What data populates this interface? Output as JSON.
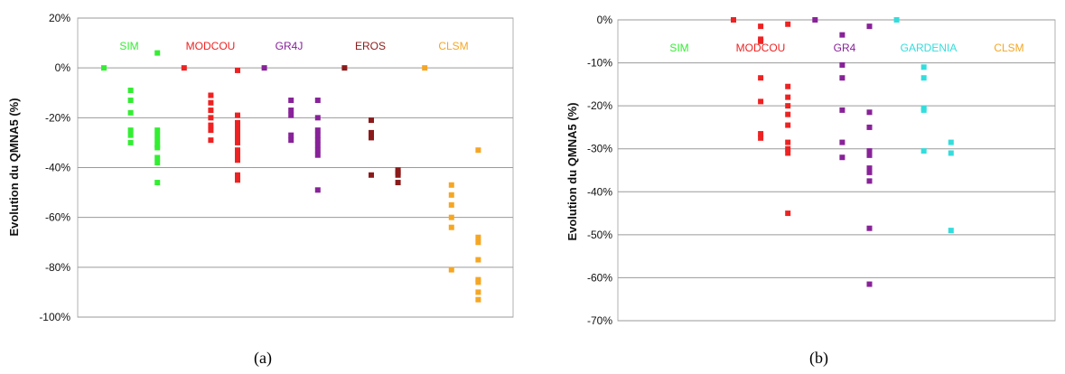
{
  "captions": {
    "a": "(a)",
    "b": "(b)"
  },
  "chart_data": [
    {
      "type": "scatter",
      "panel": "a",
      "title": "",
      "xlabel": "",
      "ylabel": "Evolution du QMNA5 (%)",
      "ylim": [
        -100,
        20
      ],
      "yticks": [
        20,
        0,
        -20,
        -40,
        -60,
        -80,
        -100
      ],
      "ytick_labels": [
        "20%",
        "0%",
        "-20%",
        "-40%",
        "-60%",
        "-80%",
        "-100%"
      ],
      "grid": true,
      "models": [
        {
          "name": "SIM",
          "color": "#33ee33",
          "series": [
            {
              "x": 1,
              "values": [
                0
              ]
            },
            {
              "x": 2,
              "values": [
                -9,
                -13,
                -18,
                -25,
                -27,
                -30
              ]
            },
            {
              "x": 3,
              "values": [
                6,
                -25,
                -27,
                -29,
                -31,
                -32,
                -36,
                -38,
                -46
              ]
            }
          ]
        },
        {
          "name": "MODCOU",
          "color": "#ee2222",
          "series": [
            {
              "x": 4,
              "values": [
                0
              ]
            },
            {
              "x": 5,
              "values": [
                -11,
                -14,
                -17,
                -20,
                -23,
                -25,
                -29
              ]
            },
            {
              "x": 6,
              "values": [
                -1,
                -19,
                -22,
                -24,
                -26,
                -28,
                -30,
                -33,
                -35,
                -37,
                -43,
                -45
              ]
            }
          ]
        },
        {
          "name": "GR4J",
          "color": "#882299",
          "series": [
            {
              "x": 7,
              "values": [
                0
              ]
            },
            {
              "x": 8,
              "values": [
                -13,
                -17,
                -19,
                -27,
                -29
              ]
            },
            {
              "x": 9,
              "values": [
                -13,
                -20,
                -25,
                -27,
                -29,
                -31,
                -33,
                -35,
                -49
              ]
            }
          ]
        },
        {
          "name": "EROS",
          "color": "#8b1a1a",
          "series": [
            {
              "x": 10,
              "values": [
                0
              ]
            },
            {
              "x": 11,
              "values": [
                -21,
                -26,
                -28,
                -43
              ]
            },
            {
              "x": 12,
              "values": [
                -41,
                -42,
                -43,
                -46
              ]
            }
          ]
        },
        {
          "name": "CLSM",
          "color": "#f5a623",
          "series": [
            {
              "x": 13,
              "values": [
                0
              ]
            },
            {
              "x": 14,
              "values": [
                -47,
                -51,
                -55,
                -60,
                -64,
                -81
              ]
            },
            {
              "x": 15,
              "values": [
                -33,
                -68,
                -70,
                -77,
                -85,
                -86,
                -90,
                -93
              ]
            }
          ]
        }
      ]
    },
    {
      "type": "scatter",
      "panel": "b",
      "title": "",
      "xlabel": "",
      "ylabel": "Evolution du QMNA5 (%)",
      "ylim": [
        -70,
        0
      ],
      "yticks": [
        0,
        -10,
        -20,
        -30,
        -40,
        -50,
        -60,
        -70
      ],
      "ytick_labels": [
        "0%",
        "-10%",
        "-20%",
        "-30%",
        "-40%",
        "-50%",
        "-60%",
        "-70%"
      ],
      "grid": true,
      "models": [
        {
          "name": "SIM",
          "color": "#33ee33",
          "series": []
        },
        {
          "name": "MODCOU",
          "color": "#ee2222",
          "series": [
            {
              "x": 1,
              "values": [
                0
              ]
            },
            {
              "x": 2,
              "values": [
                -1.5,
                -4.5,
                -5,
                -13.5,
                -19,
                -26.5,
                -27.5
              ]
            },
            {
              "x": 3,
              "values": [
                -1,
                -15.5,
                -18,
                -20,
                -22,
                -24.5,
                -28.5,
                -30,
                -31,
                -45
              ]
            }
          ]
        },
        {
          "name": "GR4",
          "color": "#882299",
          "series": [
            {
              "x": 4,
              "values": [
                0
              ]
            },
            {
              "x": 5,
              "values": [
                -3.5,
                -10.5,
                -13.5,
                -21,
                -28.5,
                -32
              ]
            },
            {
              "x": 6,
              "values": [
                -1.5,
                -21.5,
                -25,
                -30.5,
                -31.5,
                -34.5,
                -35.5,
                -37.5,
                -48.5,
                -61.5
              ]
            }
          ]
        },
        {
          "name": "GARDENIA",
          "color": "#33dddd",
          "series": [
            {
              "x": 7,
              "values": [
                0
              ]
            },
            {
              "x": 8,
              "values": [
                -11,
                -13.5,
                -20.5,
                -21,
                -30.5
              ]
            },
            {
              "x": 9,
              "values": [
                -28.5,
                -31,
                -49
              ]
            }
          ]
        },
        {
          "name": "CLSM",
          "color": "#f5a623",
          "series": []
        }
      ]
    }
  ]
}
